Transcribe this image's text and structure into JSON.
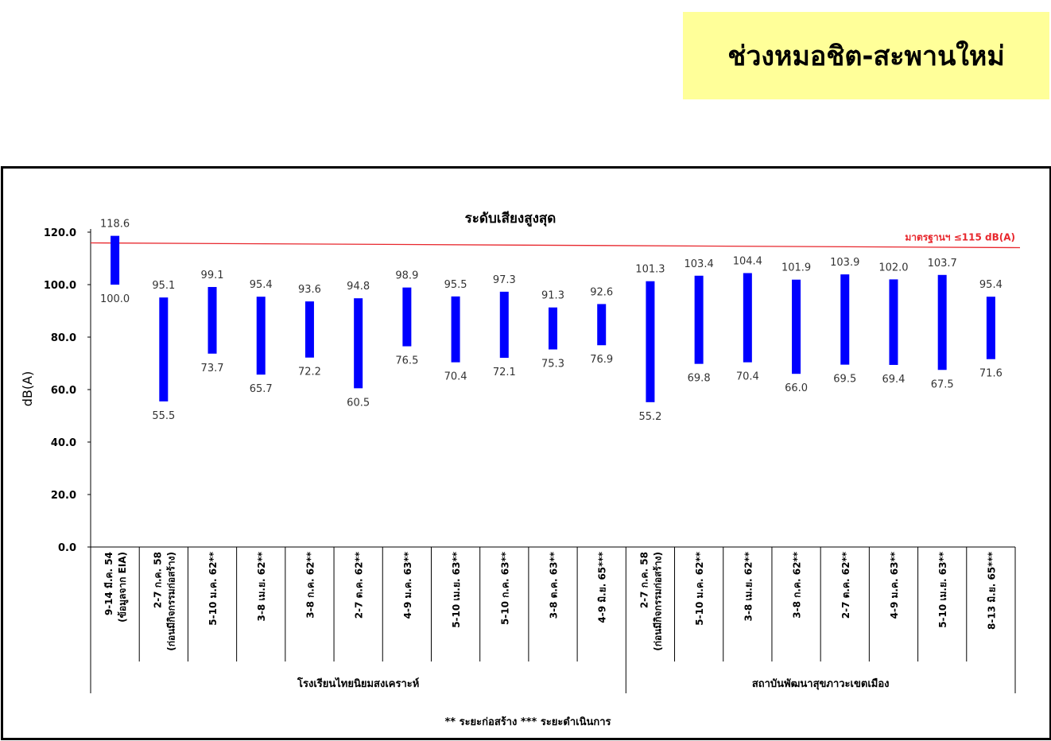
{
  "header": {
    "title": "ช่วงหมอชิต-สะพานใหม่"
  },
  "chart_data": {
    "type": "floating-bar",
    "title": "ระดับเสียงสูงสุด",
    "ylabel": "dB(A)",
    "ylim": [
      0,
      120
    ],
    "yticks": [
      "0.0",
      "20.0",
      "40.0",
      "60.0",
      "80.0",
      "100.0",
      "120.0"
    ],
    "categories": [
      [
        "9-14 มี.ค. 54",
        "(ข้อมูลจาก EIA)"
      ],
      [
        "2-7 ก.ค. 58",
        "(ก่อนมีกิจกรรมก่อสร้าง)"
      ],
      [
        "5-10 ม.ค. 62**"
      ],
      [
        "3-8 เม.ย. 62**"
      ],
      [
        "3-8 ก.ค. 62**"
      ],
      [
        "2-7 ต.ค. 62**"
      ],
      [
        "4-9 ม.ค. 63**"
      ],
      [
        "5-10 เม.ย. 63**"
      ],
      [
        "5-10 ก.ค. 63**"
      ],
      [
        "3-8 ต.ค. 63**"
      ],
      [
        "4-9 มิ.ย. 65***"
      ],
      [
        "2-7 ก.ค. 58",
        "(ก่อนมีกิจกรรมก่อสร้าง)"
      ],
      [
        "5-10 ม.ค. 62**"
      ],
      [
        "3-8 เม.ย. 62**"
      ],
      [
        "3-8 ก.ค. 62**"
      ],
      [
        "2-7 ต.ค. 62**"
      ],
      [
        "4-9 ม.ค. 63**"
      ],
      [
        "5-10 เม.ย. 63**"
      ],
      [
        "8-13 มิ.ย. 65***"
      ]
    ],
    "max_values": [
      118.6,
      95.1,
      99.1,
      95.4,
      93.6,
      94.8,
      98.9,
      95.5,
      97.3,
      91.3,
      92.6,
      101.3,
      103.4,
      104.4,
      101.9,
      103.9,
      102.0,
      103.7,
      95.4
    ],
    "min_values": [
      100.0,
      55.5,
      73.7,
      65.7,
      72.2,
      60.5,
      76.5,
      70.4,
      72.1,
      75.3,
      76.9,
      55.2,
      69.8,
      70.4,
      66.0,
      69.5,
      69.4,
      67.5,
      71.6
    ],
    "max_labels": [
      "118.6",
      "95.1",
      "99.1",
      "95.4",
      "93.6",
      "94.8",
      "98.9",
      "95.5",
      "97.3",
      "91.3",
      "92.6",
      "101.3",
      "103.4",
      "104.4",
      "101.9",
      "103.9",
      "102.0",
      "103.7",
      "95.4"
    ],
    "min_labels": [
      "100.0",
      "55.5",
      "73.7",
      "65.7",
      "72.2",
      "60.5",
      "76.5",
      "70.4",
      "72.1",
      "75.3",
      "76.9",
      "55.2",
      "69.8",
      "70.4",
      "66.0",
      "69.5",
      "69.4",
      "67.5",
      "71.6"
    ],
    "groups": [
      {
        "label": "โรงเรียนไทยนิยมสงเคราะห์",
        "start": 0,
        "end": 10
      },
      {
        "label": "สถาบันพัฒนาสุขภาวะเขตเมือง",
        "start": 11,
        "end": 18
      }
    ],
    "standard": {
      "label": "มาตรฐานฯ ≤115 dB(A)",
      "value": 115,
      "color": "#e8272d"
    },
    "bar_color": "#0000ff",
    "footnote": "** ระยะก่อสร้าง    *** ระยะดำเนินการ",
    "grid": false
  }
}
